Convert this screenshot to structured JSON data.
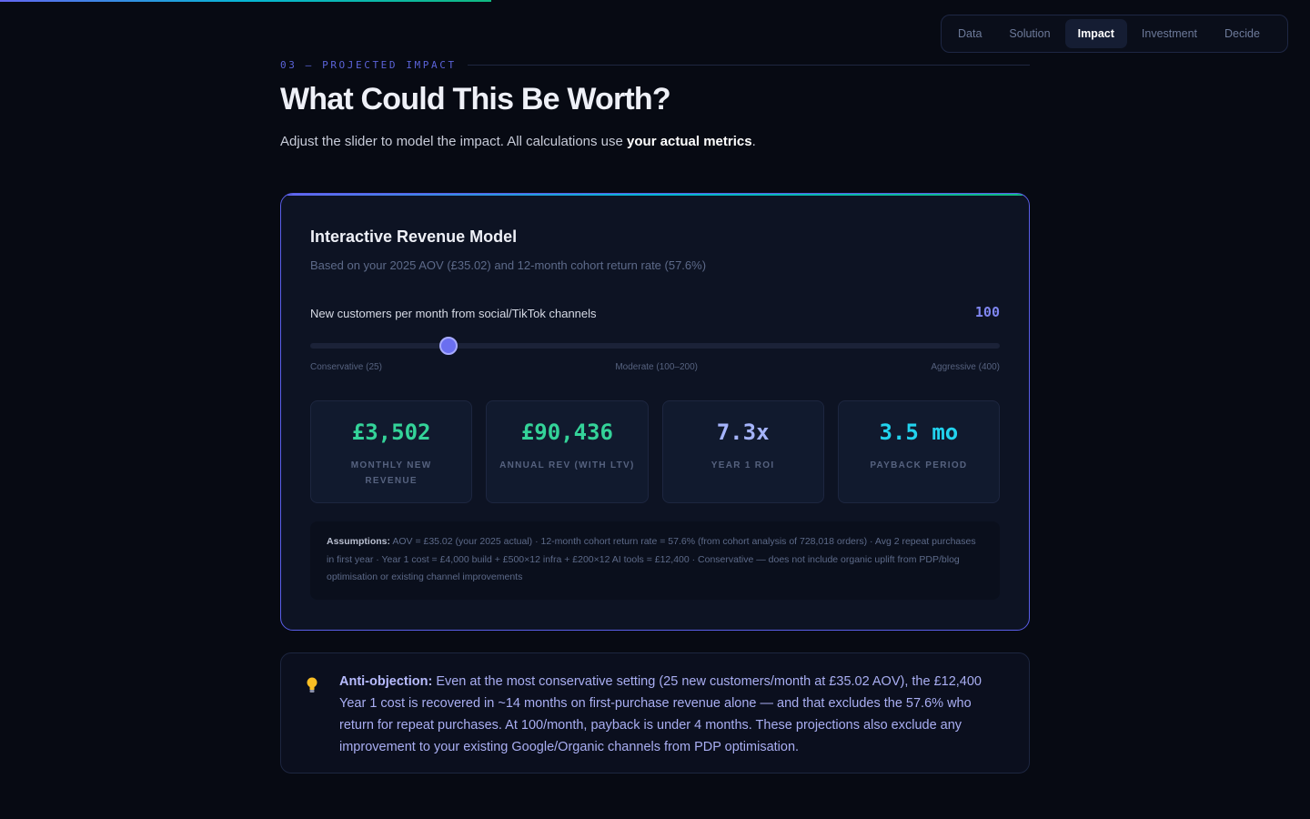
{
  "page_progress_percent": 37.5,
  "nav": {
    "tabs": [
      "Data",
      "Solution",
      "Impact",
      "Investment",
      "Decide"
    ],
    "active": "Impact"
  },
  "section": {
    "eyebrow": "03 — PROJECTED IMPACT",
    "title": "What Could This Be Worth?",
    "lead_prefix": "Adjust the slider to model the impact. All calculations use ",
    "lead_bold": "your actual metrics",
    "lead_suffix": "."
  },
  "model": {
    "title": "Interactive Revenue Model",
    "subtitle": "Based on your 2025 AOV (£35.02) and 12-month cohort return rate (57.6%)",
    "slider": {
      "label": "New customers per month from social/TikTok channels",
      "value": 100,
      "value_text": "100",
      "min": 25,
      "max": 400,
      "ticks": [
        "Conservative (25)",
        "Moderate (100–200)",
        "Aggressive (400)"
      ]
    },
    "metrics": [
      {
        "value": "£3,502",
        "label": "MONTHLY NEW REVENUE",
        "color": "#34d399"
      },
      {
        "value": "£90,436",
        "label": "ANNUAL REV (WITH LTV)",
        "color": "#34d399"
      },
      {
        "value": "7.3x",
        "label": "YEAR 1 ROI",
        "color": "#a5b4fc"
      },
      {
        "value": "3.5 mo",
        "label": "PAYBACK PERIOD",
        "color": "#22d3ee"
      }
    ],
    "assumptions_label": "Assumptions:",
    "assumptions_text": " AOV = £35.02 (your 2025 actual) · 12-month cohort return rate = 57.6% (from cohort analysis of 728,018 orders) · Avg 2 repeat purchases in first year · Year 1 cost = £4,000 build + £500×12 infra + £200×12 AI tools = £12,400 · Conservative — does not include organic uplift from PDP/blog optimisation or existing channel improvements"
  },
  "note": {
    "icon": "lightbulb-icon",
    "label": "Anti-objection:",
    "text": " Even at the most conservative setting (25 new customers/month at £35.02 AOV), the £12,400 Year 1 cost is recovered in ~14 months on first-purchase revenue alone — and that excludes the 57.6% who return for repeat purchases. At 100/month, payback is under 4 months. These projections also exclude any improvement to your existing Google/Organic channels from PDP optimisation."
  }
}
